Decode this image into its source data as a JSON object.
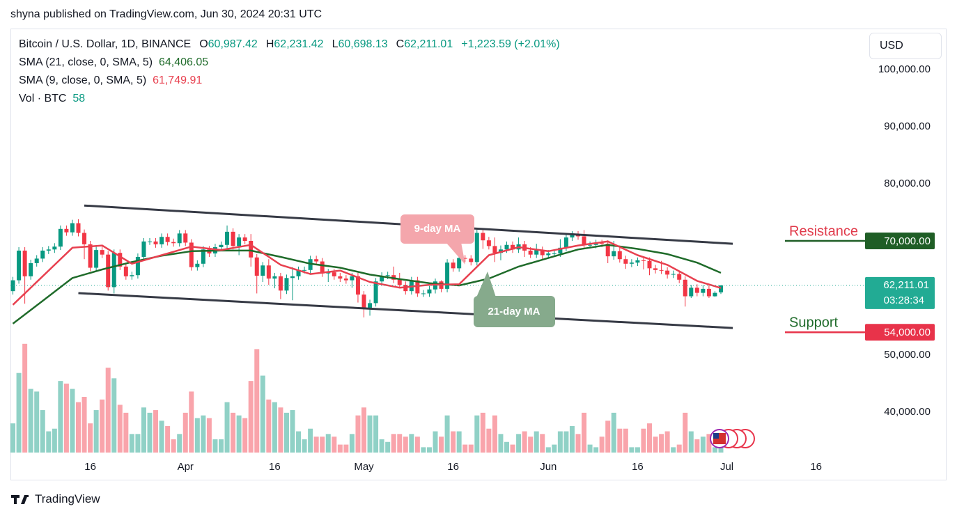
{
  "header": "shyna published on TradingView.com, Jun 30, 2024 20:31 UTC",
  "brand": "TradingView",
  "chart_data": {
    "type": "candlestick",
    "currency": "USD",
    "legend": {
      "symbol": "Bitcoin / U.S. Dollar, 1D, BINANCE",
      "ohlc": [
        {
          "key": "O",
          "value": "60,987.42"
        },
        {
          "key": "H",
          "value": "62,231.42"
        },
        {
          "key": "L",
          "value": "60,698.13"
        },
        {
          "key": "C",
          "value": "62,211.01"
        }
      ],
      "change": "+1,223.59 (+2.01%)",
      "volume_name": "Vol · BTC"
    },
    "x": [
      "2024-03-03",
      "2024-03-04",
      "2024-03-05",
      "2024-03-06",
      "2024-03-07",
      "2024-03-08",
      "2024-03-09",
      "2024-03-10",
      "2024-03-11",
      "2024-03-12",
      "2024-03-13",
      "2024-03-14",
      "2024-03-15",
      "2024-03-16",
      "2024-03-17",
      "2024-03-18",
      "2024-03-19",
      "2024-03-20",
      "2024-03-21",
      "2024-03-22",
      "2024-03-23",
      "2024-03-24",
      "2024-03-25",
      "2024-03-26",
      "2024-03-27",
      "2024-03-28",
      "2024-03-29",
      "2024-03-30",
      "2024-03-31",
      "2024-04-01",
      "2024-04-02",
      "2024-04-03",
      "2024-04-04",
      "2024-04-05",
      "2024-04-06",
      "2024-04-07",
      "2024-04-08",
      "2024-04-09",
      "2024-04-10",
      "2024-04-11",
      "2024-04-12",
      "2024-04-13",
      "2024-04-14",
      "2024-04-15",
      "2024-04-16",
      "2024-04-17",
      "2024-04-18",
      "2024-04-19",
      "2024-04-20",
      "2024-04-21",
      "2024-04-22",
      "2024-04-23",
      "2024-04-24",
      "2024-04-25",
      "2024-04-26",
      "2024-04-27",
      "2024-04-28",
      "2024-04-29",
      "2024-04-30",
      "2024-05-01",
      "2024-05-02",
      "2024-05-03",
      "2024-05-04",
      "2024-05-05",
      "2024-05-06",
      "2024-05-07",
      "2024-05-08",
      "2024-05-09",
      "2024-05-10",
      "2024-05-11",
      "2024-05-12",
      "2024-05-13",
      "2024-05-14",
      "2024-05-15",
      "2024-05-16",
      "2024-05-17",
      "2024-05-18",
      "2024-05-19",
      "2024-05-20",
      "2024-05-21",
      "2024-05-22",
      "2024-05-23",
      "2024-05-24",
      "2024-05-25",
      "2024-05-26",
      "2024-05-27",
      "2024-05-28",
      "2024-05-29",
      "2024-05-30",
      "2024-05-31",
      "2024-06-01",
      "2024-06-02",
      "2024-06-03",
      "2024-06-04",
      "2024-06-05",
      "2024-06-06",
      "2024-06-07",
      "2024-06-08",
      "2024-06-09",
      "2024-06-10",
      "2024-06-11",
      "2024-06-12",
      "2024-06-13",
      "2024-06-14",
      "2024-06-15",
      "2024-06-16",
      "2024-06-17",
      "2024-06-18",
      "2024-06-19",
      "2024-06-20",
      "2024-06-21",
      "2024-06-22",
      "2024-06-23",
      "2024-06-24",
      "2024-06-25",
      "2024-06-26",
      "2024-06-27",
      "2024-06-28",
      "2024-06-29",
      "2024-06-30"
    ],
    "open": [
      61200,
      63100,
      68300,
      63800,
      66100,
      66900,
      68300,
      68500,
      69000,
      72100,
      71500,
      73100,
      71400,
      69400,
      65300,
      68400,
      67600,
      61900,
      67900,
      65500,
      63800,
      64000,
      67200,
      69900,
      69900,
      69400,
      70700,
      69800,
      69600,
      71300,
      69700,
      65400,
      66000,
      68500,
      67800,
      68900,
      69300,
      71600,
      69100,
      70600,
      70000,
      67100,
      63900,
      65700,
      63400,
      63800,
      61300,
      63500,
      63800,
      64900,
      64900,
      66800,
      66400,
      64300,
      64500,
      63800,
      63400,
      63100,
      63800,
      60600,
      58300,
      59100,
      62900,
      63900,
      64000,
      63200,
      62300,
      61200,
      63100,
      60800,
      60800,
      61500,
      62900,
      61600,
      66200,
      65200,
      67000,
      66900,
      66300,
      71400,
      70100,
      69100,
      67900,
      68500,
      69300,
      68500,
      69400,
      68300,
      67600,
      68400,
      67500,
      67800,
      67800,
      68800,
      70600,
      71100,
      70800,
      69300,
      69300,
      69600,
      69500,
      67300,
      68200,
      66800,
      66000,
      66200,
      66600,
      66500,
      65200,
      64900,
      64800,
      64100,
      64200,
      63200,
      60300,
      61800,
      60900,
      61600,
      60300,
      60987.42
    ],
    "high": [
      63700,
      68900,
      68900,
      66700,
      67500,
      68900,
      69100,
      69600,
      72700,
      72700,
      73700,
      73800,
      72000,
      70000,
      69000,
      69000,
      68200,
      68500,
      68500,
      66000,
      64600,
      67800,
      70500,
      70500,
      70500,
      71300,
      71300,
      70400,
      71900,
      71900,
      70300,
      66600,
      69100,
      69100,
      69500,
      69900,
      72700,
      72200,
      71200,
      71200,
      71200,
      67700,
      66300,
      66800,
      64400,
      64400,
      64100,
      65400,
      65500,
      65500,
      67400,
      67400,
      67000,
      65100,
      65100,
      64400,
      64000,
      64400,
      64400,
      61200,
      59700,
      63500,
      64500,
      64600,
      65500,
      64400,
      62900,
      63700,
      63700,
      61400,
      62100,
      63400,
      63100,
      66800,
      66800,
      67600,
      67500,
      67500,
      72000,
      71900,
      70700,
      70600,
      69200,
      69900,
      69900,
      70600,
      70000,
      68900,
      69500,
      69000,
      68400,
      68400,
      70300,
      71200,
      71700,
      71700,
      71900,
      69900,
      70200,
      70200,
      70100,
      70000,
      68800,
      67400,
      66800,
      67100,
      67200,
      67100,
      65800,
      66500,
      65400,
      64800,
      64800,
      63800,
      62300,
      62400,
      62300,
      62200,
      61200,
      62231.42
    ],
    "low": [
      60600,
      62500,
      59000,
      63200,
      65500,
      66300,
      67700,
      67900,
      68400,
      70900,
      70900,
      70800,
      66800,
      64700,
      64700,
      67000,
      61300,
      60800,
      64900,
      63200,
      63200,
      63400,
      66600,
      69300,
      68800,
      68800,
      69200,
      69000,
      69000,
      69100,
      64800,
      64800,
      65400,
      67200,
      67200,
      68300,
      68700,
      68500,
      67500,
      69400,
      65500,
      60800,
      62800,
      62300,
      61700,
      59800,
      60700,
      59600,
      63200,
      64300,
      64300,
      65800,
      63700,
      62800,
      63200,
      62800,
      62500,
      61800,
      59200,
      56600,
      56900,
      58500,
      62300,
      63300,
      62600,
      61700,
      60600,
      60600,
      60200,
      60200,
      60200,
      60800,
      61000,
      61000,
      64600,
      64600,
      66300,
      65700,
      65700,
      68600,
      68500,
      66300,
      66600,
      67900,
      67900,
      67900,
      67200,
      67000,
      67000,
      66600,
      66900,
      67200,
      67200,
      68200,
      70000,
      70200,
      68700,
      68700,
      68700,
      68900,
      66100,
      66700,
      66200,
      65100,
      65400,
      65600,
      65000,
      64000,
      64300,
      64200,
      63400,
      63500,
      62600,
      58500,
      60000,
      60300,
      60300,
      60000,
      60200,
      60698.13
    ],
    "close": [
      63100,
      68300,
      63800,
      66100,
      66900,
      68300,
      68500,
      69000,
      72100,
      71500,
      73100,
      71400,
      69400,
      65300,
      68400,
      67600,
      61900,
      67900,
      65500,
      63800,
      64000,
      67200,
      69900,
      69900,
      69400,
      70700,
      69800,
      69600,
      71300,
      69700,
      65400,
      66000,
      68500,
      67800,
      68900,
      69300,
      71600,
      69100,
      70600,
      70000,
      67100,
      63900,
      65700,
      63400,
      63800,
      61300,
      63500,
      63800,
      64900,
      64900,
      66800,
      66400,
      64300,
      64500,
      63800,
      63400,
      63100,
      63800,
      60600,
      58300,
      59100,
      62900,
      63900,
      64000,
      63200,
      62300,
      61200,
      63100,
      60800,
      60800,
      61500,
      62900,
      61600,
      66200,
      65200,
      67000,
      66900,
      66300,
      71400,
      70100,
      69100,
      67900,
      68500,
      69300,
      68500,
      69400,
      68300,
      67600,
      68400,
      67500,
      67800,
      67800,
      68800,
      70600,
      71100,
      70800,
      69300,
      69300,
      69600,
      69500,
      67300,
      68200,
      66800,
      66000,
      66200,
      66600,
      66500,
      65200,
      64900,
      64800,
      64100,
      64200,
      63200,
      60300,
      61800,
      60900,
      61600,
      60300,
      60900,
      62211.01
    ],
    "volume": [
      110,
      300,
      410,
      240,
      230,
      160,
      80,
      90,
      270,
      260,
      240,
      190,
      210,
      110,
      160,
      200,
      320,
      280,
      180,
      150,
      70,
      70,
      170,
      150,
      160,
      120,
      100,
      50,
      70,
      150,
      230,
      130,
      140,
      130,
      50,
      50,
      190,
      150,
      140,
      130,
      270,
      390,
      290,
      200,
      190,
      170,
      150,
      160,
      80,
      50,
      90,
      60,
      60,
      70,
      60,
      30,
      30,
      70,
      140,
      170,
      140,
      140,
      50,
      40,
      70,
      70,
      60,
      70,
      60,
      20,
      20,
      80,
      60,
      140,
      80,
      80,
      30,
      30,
      140,
      150,
      90,
      140,
      70,
      40,
      30,
      70,
      80,
      60,
      80,
      70,
      20,
      30,
      80,
      80,
      100,
      70,
      150,
      30,
      20,
      60,
      120,
      150,
      90,
      90,
      20,
      20,
      90,
      110,
      60,
      70,
      80,
      20,
      30,
      150,
      80,
      50,
      60,
      70,
      20,
      58
    ],
    "vlim": [
      0,
      420
    ],
    "up_color": "#089981",
    "down_color": "#f23645",
    "overlays": [
      {
        "name": "SMA (21, close, 0, SMA, 5)",
        "value_label": "64,406.05",
        "color": "#1f6b2a",
        "x": [
          "2024-03-03",
          "2024-03-08",
          "2024-03-13",
          "2024-03-18",
          "2024-03-23",
          "2024-03-28",
          "2024-04-02",
          "2024-04-07",
          "2024-04-12",
          "2024-04-17",
          "2024-04-22",
          "2024-04-27",
          "2024-05-02",
          "2024-05-07",
          "2024-05-12",
          "2024-05-17",
          "2024-05-22",
          "2024-05-27",
          "2024-06-01",
          "2024-06-06",
          "2024-06-11",
          "2024-06-16",
          "2024-06-21",
          "2024-06-26",
          "2024-06-30"
        ],
        "values": [
          55500,
          59500,
          63500,
          65000,
          66300,
          67400,
          68200,
          68300,
          68300,
          67200,
          66000,
          65300,
          64100,
          63300,
          62600,
          62200,
          63400,
          65500,
          67000,
          68500,
          69300,
          68600,
          67700,
          66200,
          64406.05
        ]
      },
      {
        "name": "SMA (9, close, 0, SMA, 5)",
        "value_label": "61,749.91",
        "color": "#e8404f",
        "x": [
          "2024-03-03",
          "2024-03-08",
          "2024-03-13",
          "2024-03-18",
          "2024-03-23",
          "2024-03-28",
          "2024-04-02",
          "2024-04-07",
          "2024-04-12",
          "2024-04-17",
          "2024-04-22",
          "2024-04-27",
          "2024-05-02",
          "2024-05-07",
          "2024-05-12",
          "2024-05-17",
          "2024-05-22",
          "2024-05-27",
          "2024-06-01",
          "2024-06-06",
          "2024-06-11",
          "2024-06-16",
          "2024-06-21",
          "2024-06-26",
          "2024-06-30"
        ],
        "values": [
          58800,
          63800,
          68800,
          69200,
          66000,
          67500,
          69000,
          68400,
          69300,
          65800,
          64200,
          64800,
          62800,
          61800,
          62300,
          62400,
          67500,
          68900,
          68200,
          69200,
          69900,
          67500,
          65800,
          63000,
          61749.91
        ]
      }
    ],
    "trend_lines": [
      {
        "x": [
          "2024-03-15",
          "2024-07-02"
        ],
        "values": [
          76200,
          69500
        ],
        "color": "#363a45"
      },
      {
        "x": [
          "2024-03-14",
          "2024-07-02"
        ],
        "values": [
          60850,
          54750
        ],
        "color": "#363a45"
      }
    ],
    "annotations": [
      "9-day MA",
      "21-day MA"
    ],
    "levels": {
      "names": [
        "Resistance",
        "Support"
      ],
      "values": [
        70000,
        54000
      ],
      "value_labels": [
        "70,000.00",
        "54,000.00"
      ],
      "text_colors": [
        "#e03a4a",
        "#1f6b2a"
      ],
      "colors": [
        "#1f5e26",
        "#e8334a"
      ]
    },
    "last_price": {
      "value_label": "62,211.01",
      "countdown": "03:28:34",
      "color": "#22ab94"
    },
    "xlim": [
      "2024-03-02",
      "2024-07-24"
    ],
    "xticks": [
      {
        "value": "2024-03-16",
        "label": "16"
      },
      {
        "value": "2024-04-01",
        "label": "Apr"
      },
      {
        "value": "2024-04-16",
        "label": "16"
      },
      {
        "value": "2024-05-01",
        "label": "May"
      },
      {
        "value": "2024-05-16",
        "label": "16"
      },
      {
        "value": "2024-06-01",
        "label": "Jun"
      },
      {
        "value": "2024-06-16",
        "label": "16"
      },
      {
        "value": "2024-07-01",
        "label": "Jul"
      },
      {
        "value": "2024-07-16",
        "label": "16"
      }
    ],
    "ylim": [
      32927,
      107073
    ],
    "yticks": [
      {
        "value": 40000,
        "label": "40,000.00"
      },
      {
        "value": 50000,
        "label": "50,000.00"
      },
      {
        "value": 80000,
        "label": "80,000.00"
      },
      {
        "value": 90000,
        "label": "90,000.00"
      },
      {
        "value": 100000,
        "label": "100,000.00"
      }
    ],
    "grid": false
  }
}
